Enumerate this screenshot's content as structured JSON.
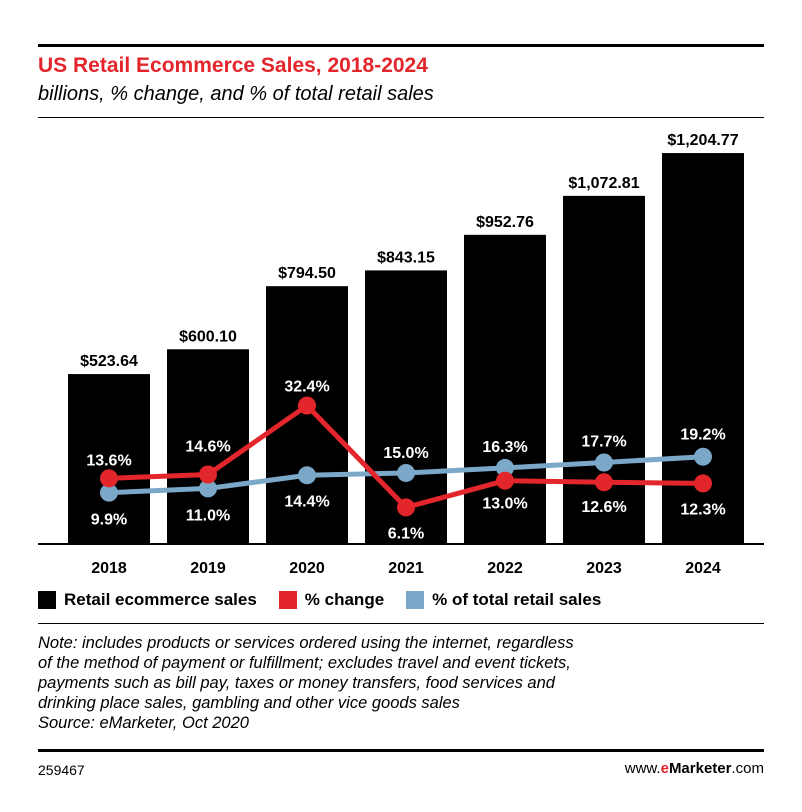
{
  "title": "US Retail Ecommerce Sales, 2018-2024",
  "subtitle": "billions, % change, and % of total retail sales",
  "chart_data": {
    "type": "bar",
    "categories": [
      "2018",
      "2019",
      "2020",
      "2021",
      "2022",
      "2023",
      "2024"
    ],
    "series": [
      {
        "name": "Retail ecommerce sales",
        "kind": "bar",
        "values": [
          523.64,
          600.1,
          794.5,
          843.15,
          952.76,
          1072.81,
          1204.77
        ],
        "labels": [
          "$523.64",
          "$600.10",
          "$794.50",
          "$843.15",
          "$952.76",
          "$1,072.81",
          "$1,204.77"
        ],
        "color": "#000000"
      },
      {
        "name": "% change",
        "kind": "line",
        "values": [
          13.6,
          14.6,
          32.4,
          6.1,
          13.0,
          12.6,
          12.3
        ],
        "labels": [
          "13.6%",
          "14.6%",
          "32.4%",
          "6.1%",
          "13.0%",
          "12.6%",
          "12.3%"
        ],
        "color": "#e3262b"
      },
      {
        "name": "% of total retail sales",
        "kind": "line",
        "values": [
          9.9,
          11.0,
          14.4,
          15.0,
          16.3,
          17.7,
          19.2
        ],
        "labels": [
          "9.9%",
          "11.0%",
          "14.4%",
          "15.0%",
          "16.3%",
          "17.7%",
          "19.2%"
        ],
        "color": "#7ba7c9"
      }
    ],
    "legend_position": "bottom",
    "grid": false
  },
  "legend": [
    {
      "label": "Retail ecommerce sales",
      "color": "#000000"
    },
    {
      "label": "% change",
      "color": "#e3262b"
    },
    {
      "label": "% of total retail sales",
      "color": "#7ba7c9"
    }
  ],
  "note": {
    "lines": [
      "Note: includes products or services ordered using the internet, regardless",
      "of the method of payment or fulfillment; excludes travel and event tickets,",
      "payments such as bill pay, taxes or money transfers, food services and",
      "drinking place sales, gambling and other vice goods sales",
      "Source: eMarketer, Oct 2020"
    ]
  },
  "footer": {
    "id": "259467",
    "brand_prefix": "www.",
    "brand_e": "e",
    "brand_name": "Marketer",
    "brand_suffix": ".com"
  },
  "colors": {
    "accent": "#e3262b",
    "bar": "#000000",
    "share_line": "#7ba7c9"
  }
}
